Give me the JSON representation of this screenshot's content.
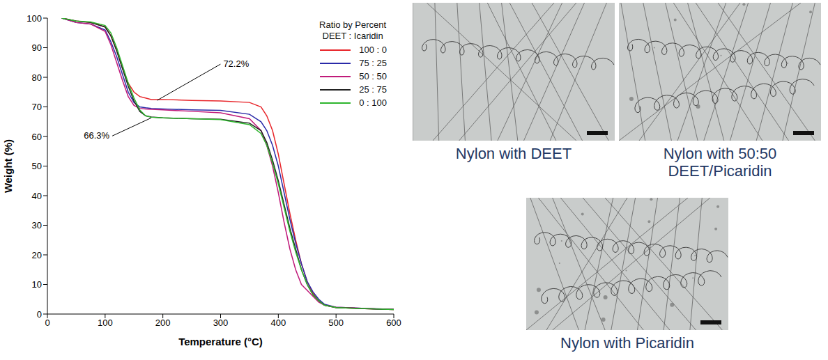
{
  "chart_data": {
    "type": "line",
    "x_label": "Temperature (°C)",
    "y_label": "Weight (%)",
    "legend_title": [
      "Ratio by Percent",
      "DEET : Icaridin"
    ],
    "legend": "top right",
    "grid": false,
    "xlim": [
      0,
      600
    ],
    "xticks": [
      0,
      100,
      200,
      300,
      400,
      500,
      600
    ],
    "ylim": [
      0,
      100
    ],
    "yticks": [
      0,
      10,
      20,
      30,
      40,
      50,
      60,
      70,
      80,
      90,
      100
    ],
    "x": [
      25,
      50,
      75,
      100,
      110,
      120,
      130,
      140,
      150,
      160,
      170,
      180,
      200,
      250,
      300,
      350,
      370,
      380,
      390,
      400,
      410,
      420,
      430,
      440,
      450,
      460,
      470,
      480,
      500,
      550,
      600
    ],
    "series": [
      {
        "name": "100 : 0",
        "color": "#e8262b",
        "values": [
          100,
          99,
          98.5,
          97,
          94,
          89,
          83,
          78,
          75,
          73.5,
          73,
          72.5,
          72.5,
          72.2,
          72,
          71.5,
          70,
          67,
          62,
          54,
          44,
          34,
          25,
          17,
          11,
          7,
          4.5,
          3,
          2.2,
          1.8,
          1.5
        ]
      },
      {
        "name": "75 : 25",
        "color": "#2a2aa8",
        "values": [
          100,
          98.5,
          98,
          96,
          92,
          87,
          81,
          75,
          71.5,
          70,
          69.7,
          69.5,
          69.3,
          69,
          68.8,
          67.5,
          65,
          62,
          57,
          50,
          41,
          32,
          24,
          17,
          11,
          7.5,
          5,
          3.3,
          2.3,
          1.9,
          1.6
        ]
      },
      {
        "name": "50 : 50",
        "color": "#c01a7a",
        "values": [
          100,
          98.5,
          98,
          95.5,
          91,
          85,
          79,
          73.5,
          70.5,
          69.5,
          69.3,
          69.2,
          69,
          68.5,
          68,
          66,
          62,
          57,
          50,
          41,
          31,
          22,
          15,
          10,
          8,
          6,
          4,
          3,
          2.3,
          1.9,
          1.6
        ]
      },
      {
        "name": "25 : 75",
        "color": "#222222",
        "values": [
          100,
          99,
          98.5,
          97,
          94,
          89,
          83,
          77,
          72,
          68.5,
          67,
          66.6,
          66.3,
          66,
          65.8,
          64.5,
          62,
          58,
          52,
          45,
          37,
          29,
          22,
          15,
          10,
          6.5,
          4.5,
          3,
          2.2,
          1.8,
          1.5
        ]
      },
      {
        "name": "0 : 100",
        "color": "#2db52d",
        "values": [
          100,
          99,
          98.7,
          97.5,
          95,
          90,
          84,
          78,
          73,
          69,
          67,
          66.5,
          66.3,
          66,
          65.7,
          64,
          61,
          57,
          51,
          44,
          36,
          28,
          21,
          15,
          10,
          6.5,
          4.5,
          3,
          2.2,
          1.8,
          1.5
        ]
      }
    ],
    "annotations": [
      {
        "text": "72.2%",
        "x": 190,
        "y": 72.2
      },
      {
        "text": "66.3%",
        "x": 180,
        "y": 66.3
      }
    ]
  },
  "images": [
    {
      "caption": "Nylon with DEET"
    },
    {
      "caption": "Nylon with 50:50 DEET/Picaridin"
    },
    {
      "caption": "Nylon with Picaridin"
    }
  ]
}
